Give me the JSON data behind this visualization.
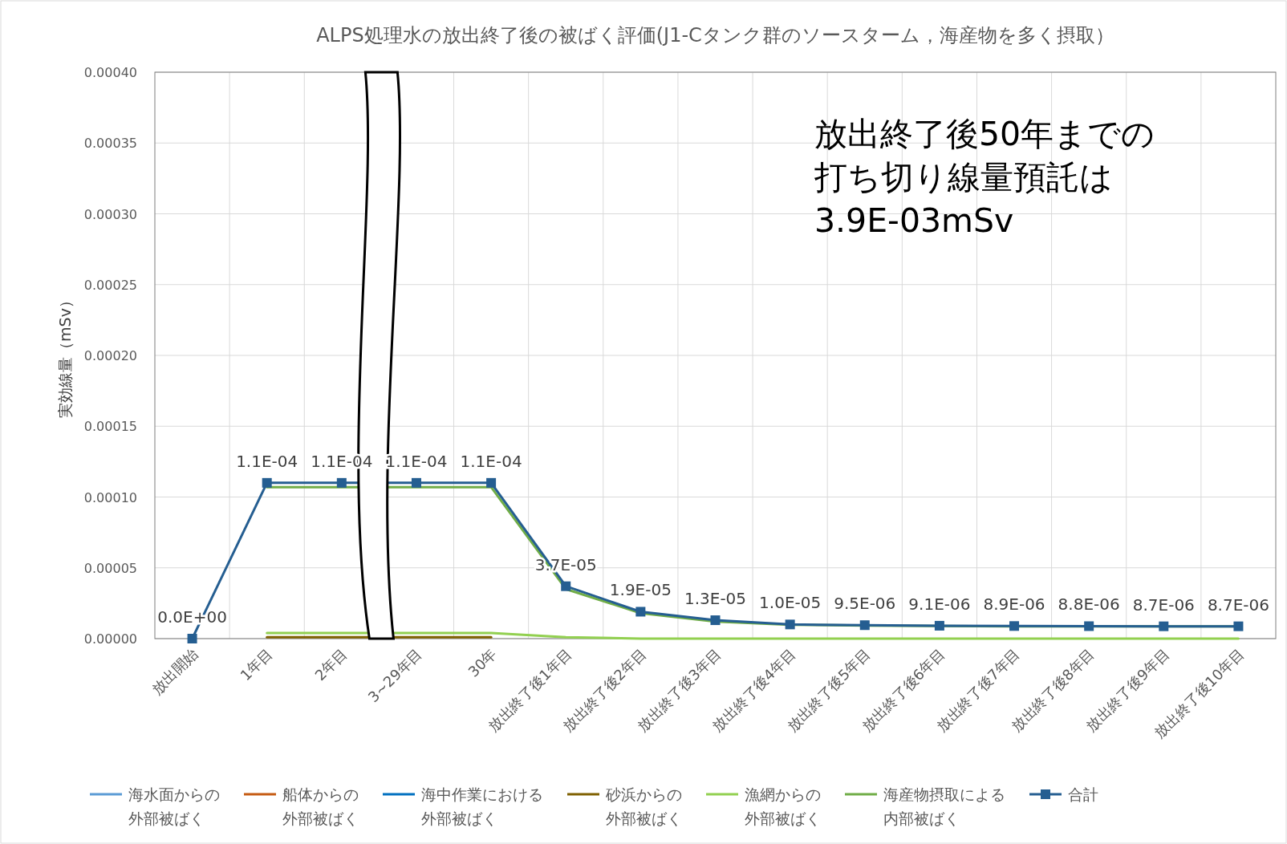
{
  "chart_data": {
    "type": "line",
    "title": "ALPS処理水の放出終了後の被ばく評価(J1-Cタンク群のソースターム，海産物を多く摂取）",
    "ylabel": "実効線量（mSv）",
    "categories": [
      "放出開始",
      "1年目",
      "2年目",
      "3~29年目",
      "30年",
      "放出終了後1年目",
      "放出終了後2年目",
      "放出終了後3年目",
      "放出終了後4年目",
      "放出終了後5年目",
      "放出終了後6年目",
      "放出終了後7年目",
      "放出終了後8年目",
      "放出終了後9年目",
      "放出終了後10年目"
    ],
    "ylim": [
      0,
      0.0004
    ],
    "yticks": [
      {
        "value": 0,
        "label": "0.00000"
      },
      {
        "value": 5e-05,
        "label": "0.00005"
      },
      {
        "value": 0.0001,
        "label": "0.00010"
      },
      {
        "value": 0.00015,
        "label": "0.00015"
      },
      {
        "value": 0.0002,
        "label": "0.00020"
      },
      {
        "value": 0.00025,
        "label": "0.00025"
      },
      {
        "value": 0.0003,
        "label": "0.00030"
      },
      {
        "value": 0.00035,
        "label": "0.00035"
      },
      {
        "value": 0.0004,
        "label": "0.00040"
      }
    ],
    "grid": true,
    "legend": "bottom",
    "series": [
      {
        "name": "海水面からの外部被ばく",
        "color": "#5b9bd5",
        "marker": "none",
        "values": [
          null,
          null,
          null,
          null,
          null,
          null,
          null,
          null,
          null,
          null,
          null,
          null,
          null,
          null,
          null
        ]
      },
      {
        "name": "船体からの外部被ばく",
        "color": "#c55a11",
        "marker": "none",
        "values": [
          null,
          null,
          null,
          null,
          null,
          null,
          null,
          null,
          null,
          null,
          null,
          null,
          null,
          null,
          null
        ]
      },
      {
        "name": "海中作業における外部被ばく",
        "color": "#0070c0",
        "marker": "none",
        "values": [
          null,
          null,
          null,
          null,
          null,
          null,
          null,
          null,
          null,
          null,
          null,
          null,
          null,
          null,
          null
        ]
      },
      {
        "name": "砂浜からの外部被ばく",
        "color": "#7f6000",
        "marker": "none",
        "values": [
          null,
          1e-06,
          1e-06,
          1e-06,
          1e-06,
          null,
          null,
          null,
          null,
          null,
          null,
          null,
          null,
          null,
          null
        ]
      },
      {
        "name": "漁網からの外部被ばく",
        "color": "#92d050",
        "marker": "none",
        "values": [
          null,
          4e-06,
          4e-06,
          4e-06,
          4e-06,
          1e-06,
          0,
          0,
          0,
          0,
          0,
          0,
          0,
          0,
          0
        ]
      },
      {
        "name": "海産物摂取による内部被ばく",
        "color": "#70ad47",
        "marker": "none",
        "values": [
          null,
          0.000107,
          0.000107,
          0.000107,
          0.000107,
          3.5e-05,
          1.8e-05,
          1.2e-05,
          9.8e-06,
          9.2e-06,
          8.9e-06,
          8.7e-06,
          8.6e-06,
          8.6e-06,
          8.6e-06
        ]
      },
      {
        "name": "合計",
        "color": "#255e91",
        "marker": "square",
        "values": [
          0,
          0.00011,
          0.00011,
          0.00011,
          0.00011,
          3.7e-05,
          1.9e-05,
          1.3e-05,
          1e-05,
          9.5e-06,
          9.1e-06,
          8.9e-06,
          8.8e-06,
          8.7e-06,
          8.7e-06
        ],
        "value_labels": [
          "0.0E+00",
          "1.1E-04",
          "1.1E-04",
          "1.1E-04",
          "1.1E-04",
          "3.7E-05",
          "1.9E-05",
          "1.3E-05",
          "1.0E-05",
          "9.5E-06",
          "9.1E-06",
          "8.9E-06",
          "8.8E-06",
          "8.7E-06",
          "8.7E-06"
        ]
      }
    ],
    "annotations": [
      "放出終了後50年までの打ち切り線量預託は3.9E-03mSv"
    ]
  }
}
